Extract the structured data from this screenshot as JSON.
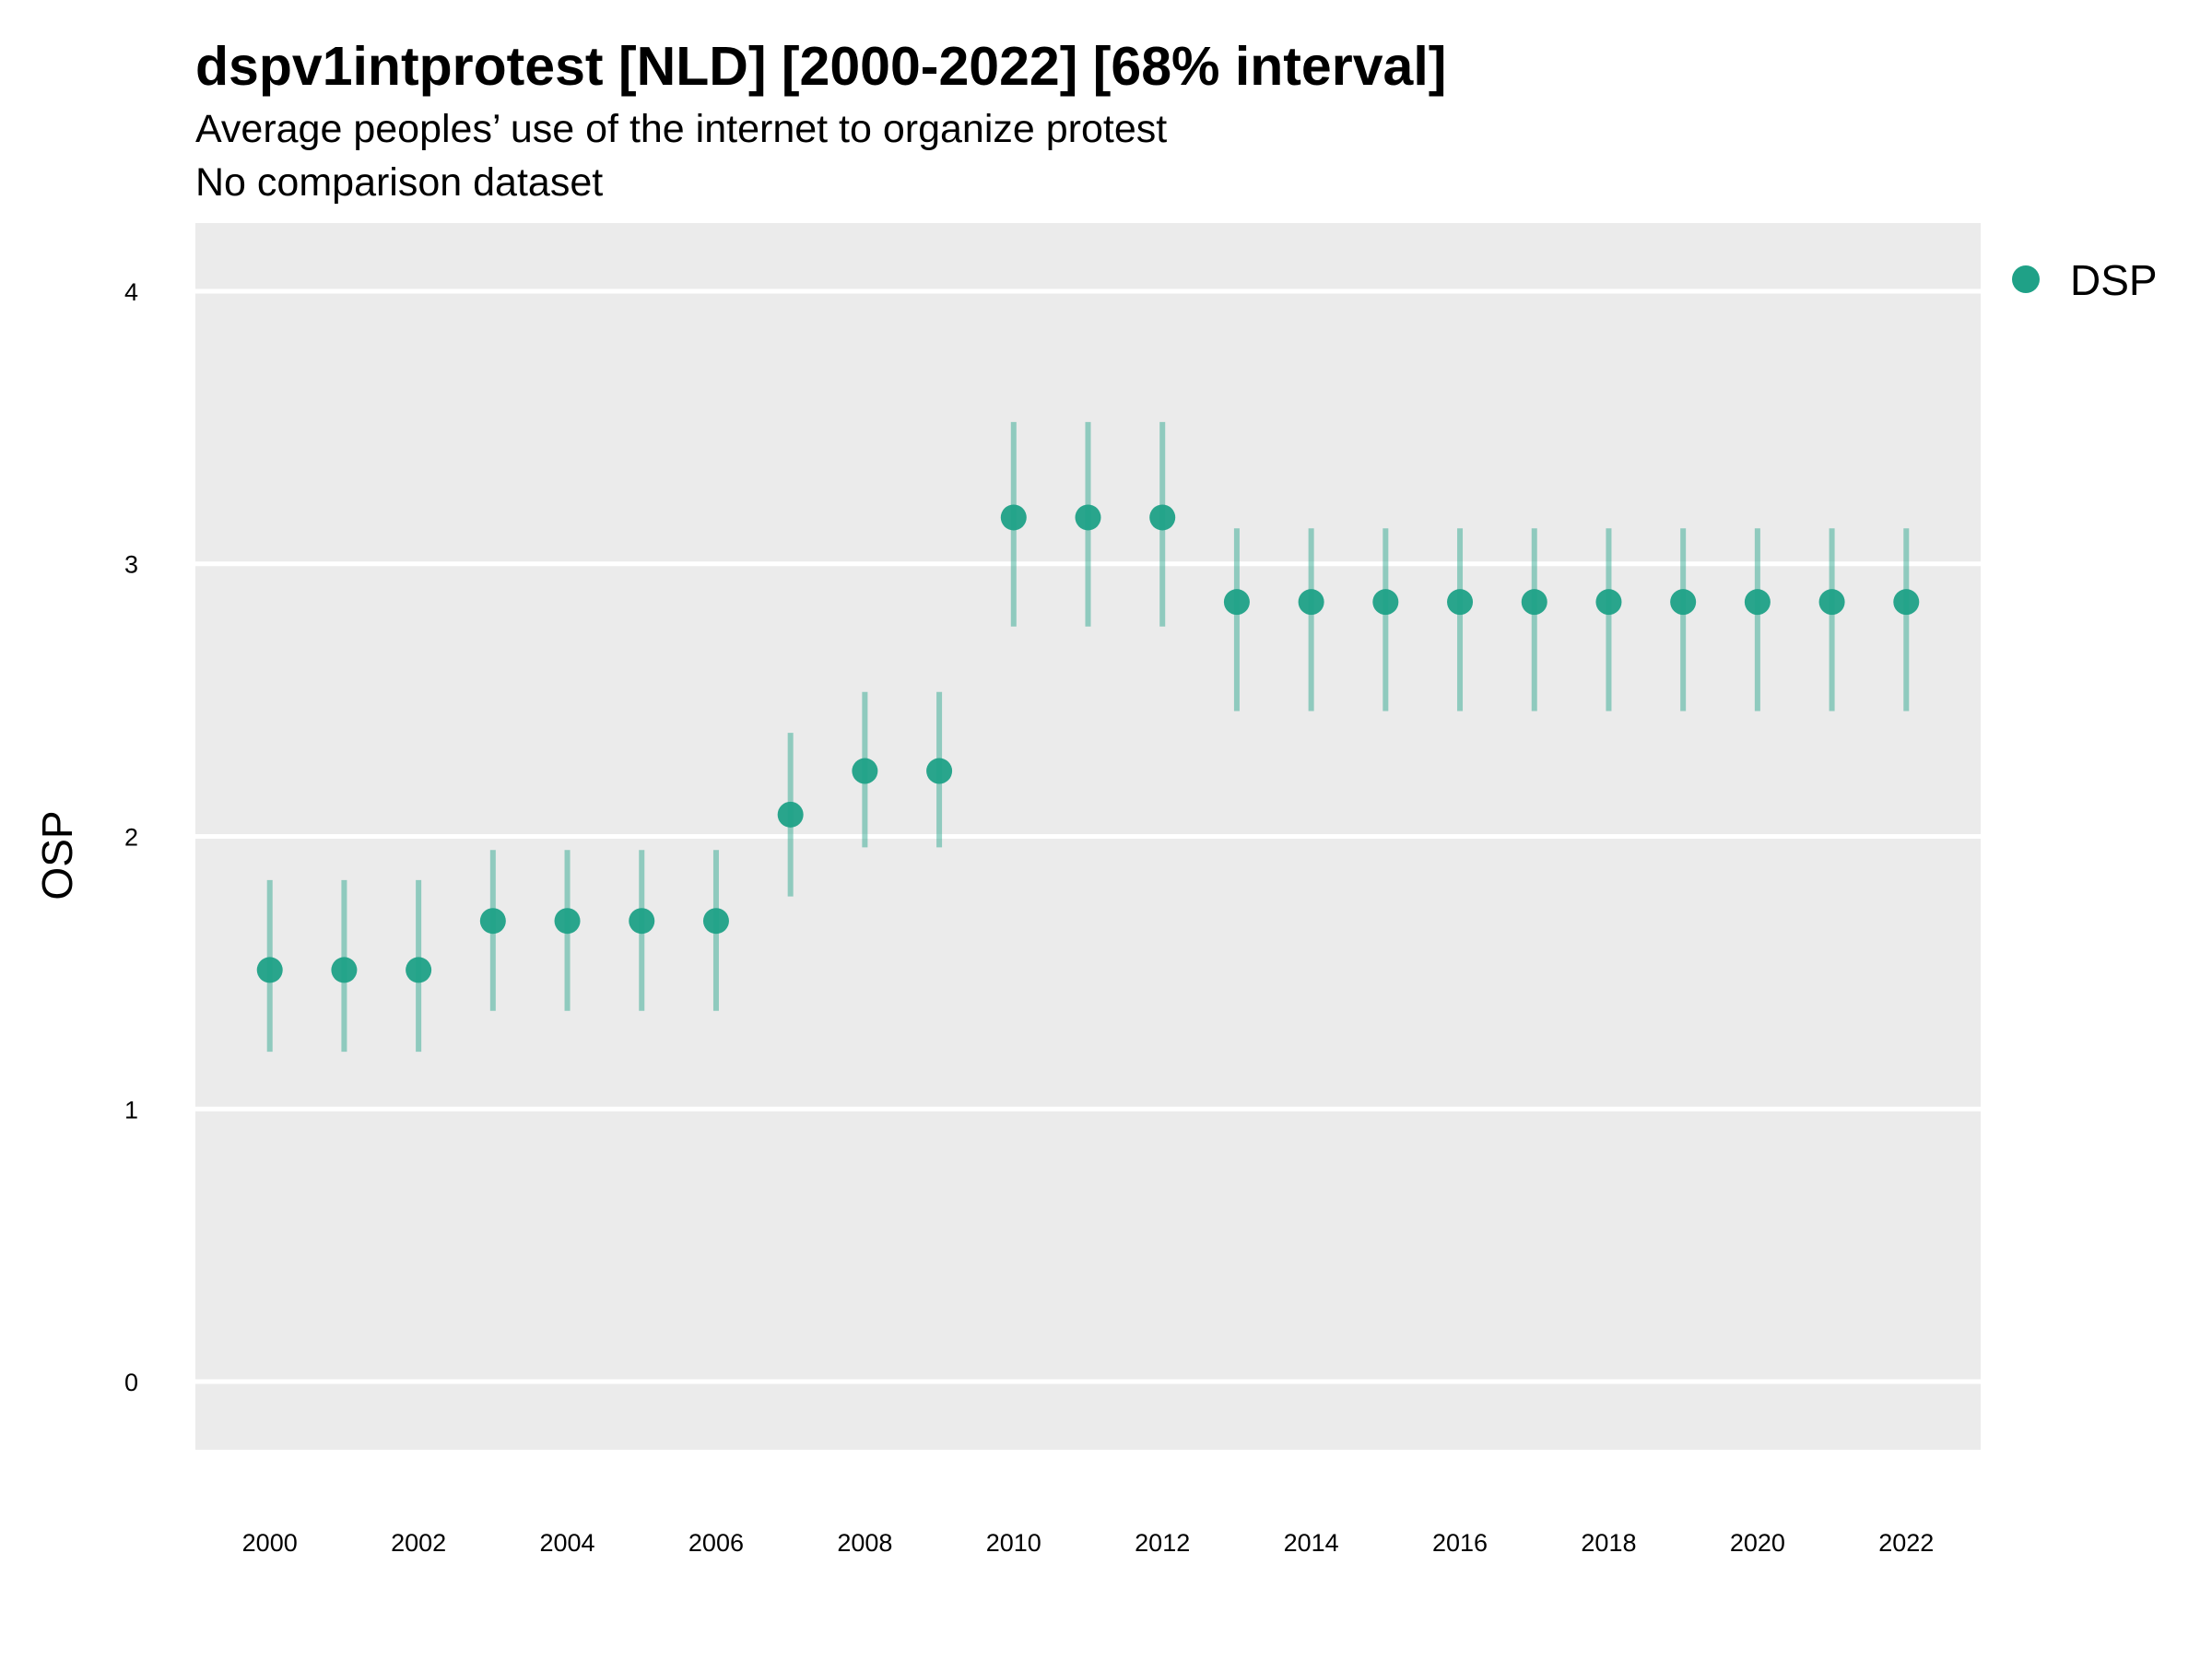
{
  "chart_data": {
    "type": "scatter",
    "title": "dspv1intprotest [NLD] [2000-2022] [68% interval]",
    "subtitle": "Average peoples’ use of the internet to organize protest",
    "subtitle2": "No comparison dataset",
    "xlabel": "",
    "ylabel": "OSP",
    "ylim": [
      -0.25,
      4.25
    ],
    "xlim": [
      1999,
      2023
    ],
    "y_ticks": [
      "0",
      "1",
      "2",
      "3",
      "4"
    ],
    "x_ticks": [
      "2000",
      "2002",
      "2004",
      "2006",
      "2008",
      "2010",
      "2012",
      "2014",
      "2016",
      "2018",
      "2020",
      "2022"
    ],
    "grid": true,
    "legend_position": "right",
    "series": [
      {
        "name": "DSP",
        "color": "#1fa187",
        "x": [
          2000,
          2001,
          2002,
          2003,
          2004,
          2005,
          2006,
          2007,
          2008,
          2009,
          2010,
          2011,
          2012,
          2013,
          2014,
          2015,
          2016,
          2017,
          2018,
          2019,
          2020,
          2021,
          2022
        ],
        "y": [
          1.51,
          1.51,
          1.51,
          1.69,
          1.69,
          1.69,
          1.69,
          2.08,
          2.24,
          2.24,
          3.17,
          3.17,
          3.17,
          2.86,
          2.86,
          2.86,
          2.86,
          2.86,
          2.86,
          2.86,
          2.86,
          2.86,
          2.86
        ],
        "lower": [
          1.21,
          1.21,
          1.21,
          1.36,
          1.36,
          1.36,
          1.36,
          1.78,
          1.96,
          1.96,
          2.77,
          2.77,
          2.77,
          2.46,
          2.46,
          2.46,
          2.46,
          2.46,
          2.46,
          2.46,
          2.46,
          2.46,
          2.46
        ],
        "upper": [
          1.84,
          1.84,
          1.84,
          1.95,
          1.95,
          1.95,
          1.95,
          2.38,
          2.53,
          2.53,
          3.52,
          3.52,
          3.52,
          3.13,
          3.13,
          3.13,
          3.13,
          3.13,
          3.13,
          3.13,
          3.13,
          3.13,
          3.13
        ]
      }
    ]
  }
}
